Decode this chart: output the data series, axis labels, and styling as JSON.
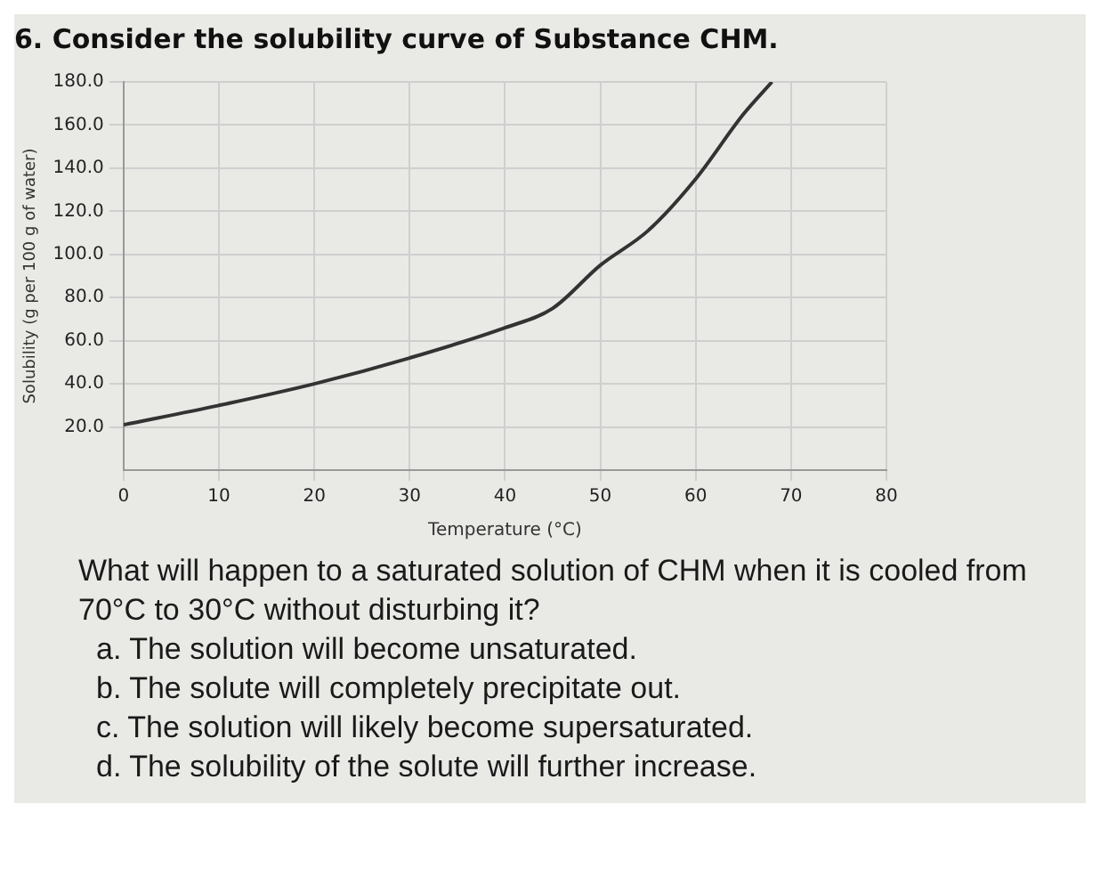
{
  "chart_data": {
    "type": "line",
    "title": "6. Consider the solubility curve of Substance CHM.",
    "xlabel": "Temperature (°C)",
    "ylabel": "Solubility (g per 100 g of water)",
    "x": [
      0,
      10,
      20,
      30,
      40,
      45,
      50,
      55,
      60,
      65,
      68
    ],
    "series": [
      {
        "color": "#333333",
        "values": [
          21,
          30,
          40,
          52,
          66,
          75,
          95,
          111,
          135,
          165,
          180
        ]
      }
    ],
    "xlim": [
      0,
      80
    ],
    "xticks": [
      0,
      10,
      20,
      30,
      40,
      50,
      60,
      70,
      80
    ],
    "ylim": [
      0,
      180
    ],
    "yticks": [
      {
        "value": 20,
        "label": "20.0"
      },
      {
        "value": 40,
        "label": "40.0"
      },
      {
        "value": 60,
        "label": "60.0"
      },
      {
        "value": 80,
        "label": "80.0"
      },
      {
        "value": 100,
        "label": "100.0"
      },
      {
        "value": 120,
        "label": "120.0"
      },
      {
        "value": 140,
        "label": "140.0"
      },
      {
        "value": 160,
        "label": "160.0"
      },
      {
        "value": 180,
        "label": "180.0"
      }
    ],
    "grid": true,
    "marker": "none",
    "line_style": "solid",
    "legend": false,
    "annotations": [
      "What will happen to a saturated solution of CHM when it is cooled from 70°C to 30°C without disturbing it?",
      "a.  The solution will become unsaturated.",
      "b.  The solute will completely precipitate out.",
      "c.  The solution will likely become supersaturated.",
      "d.  The solubility of the solute will further increase."
    ]
  }
}
